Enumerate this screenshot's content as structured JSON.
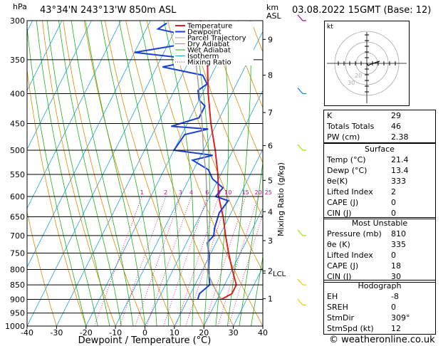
{
  "header": {
    "location": "43°34'N  243°13'W  850m  ASL",
    "datetime": "03.08.2022  15GMT  (Base: 12)"
  },
  "footer": {
    "credit": "© weatheronline.co.uk"
  },
  "chart_data": {
    "type": "line",
    "title": "",
    "xlabel": "Dewpoint / Temperature (°C)",
    "ylabel": "hPa",
    "right_ylabel": "Mixing Ratio (g/kg)",
    "km_label": [
      "km",
      "ASL"
    ],
    "xlim": [
      -40,
      40
    ],
    "ylim": [
      1000,
      300
    ],
    "log_pressure": true,
    "x_ticks": [
      -40,
      -30,
      -20,
      -10,
      0,
      10,
      20,
      30,
      40
    ],
    "pressure_ticks": [
      300,
      350,
      400,
      450,
      500,
      550,
      600,
      650,
      700,
      750,
      800,
      850,
      900,
      950,
      1000
    ],
    "km_ticks": [
      {
        "p": 323,
        "label": "9"
      },
      {
        "p": 372,
        "label": "8"
      },
      {
        "p": 431,
        "label": "7"
      },
      {
        "p": 491,
        "label": "6"
      },
      {
        "p": 563,
        "label": "5"
      },
      {
        "p": 637,
        "label": "4"
      },
      {
        "p": 714,
        "label": "3"
      },
      {
        "p": 805,
        "label": "2"
      },
      {
        "p": 898,
        "label": "1"
      }
    ],
    "lcl": {
      "p": 812,
      "label": "LCL"
    },
    "mixing_ratio_labels": [
      "1",
      "2",
      "3",
      "4",
      "6",
      "8",
      "10",
      "15",
      "20",
      "25"
    ],
    "legend": [
      "Temperature",
      "Dewpoint",
      "Parcel Trajectory",
      "Dry Adiabat",
      "Wet Adiabat",
      "Isotherm",
      "Mixing Ratio"
    ],
    "colors": {
      "temperature": "#e02020",
      "dewpoint": "#1a3fd6",
      "parcel": "#a0a0a0",
      "dry_adiabat": "#e08a00",
      "wet_adiabat": "#19b319",
      "isotherm": "#19a0e0",
      "mixing_ratio": "#d0008a"
    },
    "series": [
      {
        "name": "Temperature",
        "points": [
          [
            900,
            21.4
          ],
          [
            880,
            24
          ],
          [
            850,
            24
          ],
          [
            800,
            20
          ],
          [
            750,
            16
          ],
          [
            700,
            12
          ],
          [
            650,
            8
          ],
          [
            600,
            3
          ],
          [
            550,
            -1
          ],
          [
            500,
            -6
          ],
          [
            450,
            -12
          ],
          [
            400,
            -18
          ],
          [
            350,
            -24
          ],
          [
            320,
            -29
          ],
          [
            300,
            -33
          ]
        ]
      },
      {
        "name": "Dewpoint",
        "points": [
          [
            900,
            13.4
          ],
          [
            880,
            13
          ],
          [
            850,
            15
          ],
          [
            800,
            12
          ],
          [
            760,
            10
          ],
          [
            720,
            7
          ],
          [
            700,
            8
          ],
          [
            680,
            7
          ],
          [
            640,
            6
          ],
          [
            610,
            7
          ],
          [
            600,
            2
          ],
          [
            580,
            3
          ],
          [
            560,
            -2
          ],
          [
            540,
            -5
          ],
          [
            520,
            -12
          ],
          [
            510,
            -6
          ],
          [
            500,
            -20
          ],
          [
            470,
            -19
          ],
          [
            460,
            -12
          ],
          [
            455,
            -25
          ],
          [
            440,
            -17
          ],
          [
            420,
            -17
          ],
          [
            410,
            -20
          ],
          [
            395,
            -22
          ],
          [
            385,
            -20
          ],
          [
            372,
            -23
          ],
          [
            360,
            -38
          ],
          [
            350,
            -27
          ],
          [
            340,
            -50
          ],
          [
            330,
            -36
          ],
          [
            320,
            -32
          ],
          [
            310,
            -46
          ],
          [
            303,
            -44
          ]
        ]
      },
      {
        "name": "Parcel Trajectory",
        "points": [
          [
            900,
            21.4
          ],
          [
            850,
            16
          ],
          [
            812,
            12.5
          ],
          [
            750,
            9
          ],
          [
            700,
            6
          ],
          [
            650,
            2.5
          ],
          [
            600,
            -1
          ],
          [
            550,
            -5
          ],
          [
            500,
            -10
          ],
          [
            450,
            -15
          ],
          [
            400,
            -21
          ],
          [
            350,
            -28
          ],
          [
            300,
            -36
          ]
        ]
      }
    ]
  },
  "hodograph": {
    "label": "kt",
    "ring_labels": [
      "20",
      "30"
    ]
  },
  "indices": {
    "rows": [
      {
        "label": "K",
        "value": "29"
      },
      {
        "label": "Totals Totals",
        "value": "46"
      },
      {
        "label": "PW (cm)",
        "value": "2.38"
      }
    ]
  },
  "surface": {
    "title": "Surface",
    "rows": [
      {
        "label": "Temp (°C)",
        "value": "21.4"
      },
      {
        "label": "Dewp (°C)",
        "value": "13.4"
      },
      {
        "label": "θe(K)",
        "value": "333"
      },
      {
        "label": "Lifted Index",
        "value": "2"
      },
      {
        "label": "CAPE (J)",
        "value": "0"
      },
      {
        "label": "CIN (J)",
        "value": "0"
      }
    ]
  },
  "most_unstable": {
    "title": "Most Unstable",
    "rows": [
      {
        "label": "Pressure (mb)",
        "value": "810"
      },
      {
        "label": "θe (K)",
        "value": "335"
      },
      {
        "label": "Lifted Index",
        "value": "0"
      },
      {
        "label": "CAPE (J)",
        "value": "18"
      },
      {
        "label": "CIN (J)",
        "value": "30"
      }
    ]
  },
  "hodograph_table": {
    "title": "Hodograph",
    "rows": [
      {
        "label": "EH",
        "value": "-8"
      },
      {
        "label": "SREH",
        "value": "0"
      },
      {
        "label": "StmDir",
        "value": "309°"
      },
      {
        "label": "StmSpd (kt)",
        "value": "12"
      }
    ]
  }
}
